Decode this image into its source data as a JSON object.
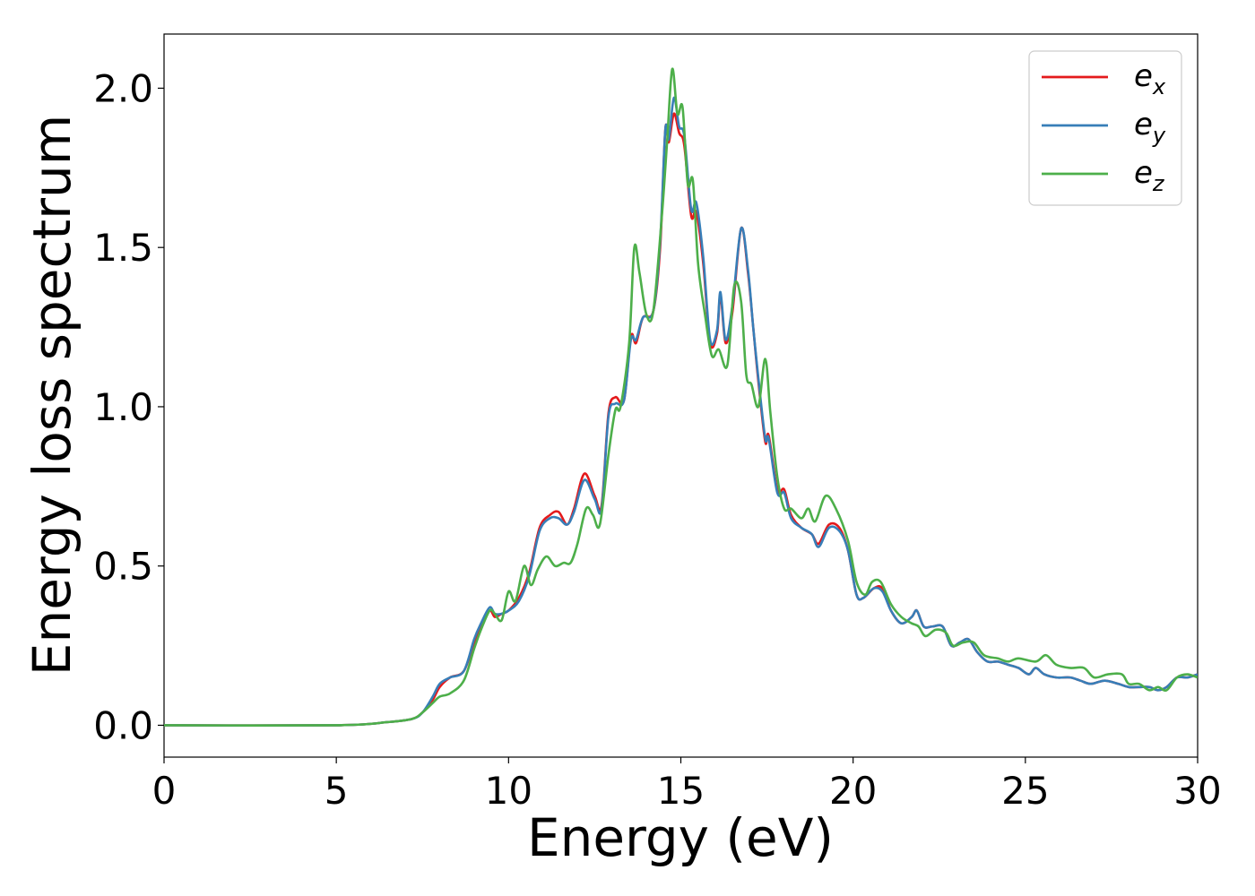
{
  "chart_data": {
    "type": "line",
    "xlabel": "Energy (eV)",
    "ylabel": "Energy loss spectrum",
    "xlim": [
      0,
      30
    ],
    "ylim": [
      -0.1,
      2.17
    ],
    "xticks": [
      "0",
      "5",
      "10",
      "15",
      "20",
      "25",
      "30"
    ],
    "yticks": [
      "0.0",
      "0.5",
      "1.0",
      "1.5",
      "2.0"
    ],
    "grid": false,
    "legend_position": "top-right",
    "series": [
      {
        "name": "e_x",
        "legend_base": "e",
        "legend_sub": "x",
        "color": "#e41a1c",
        "x": [
          0,
          5,
          6.5,
          7.2,
          7.5,
          7.8,
          8.0,
          8.3,
          8.7,
          9.0,
          9.2,
          9.45,
          9.6,
          9.8,
          10.0,
          10.3,
          10.6,
          10.9,
          11.2,
          11.45,
          11.7,
          11.9,
          12.2,
          12.5,
          12.7,
          12.9,
          13.1,
          13.35,
          13.55,
          13.7,
          13.9,
          14.2,
          14.4,
          14.55,
          14.65,
          14.8,
          14.95,
          15.1,
          15.3,
          15.45,
          15.65,
          15.85,
          16.05,
          16.15,
          16.3,
          16.5,
          16.75,
          16.95,
          17.1,
          17.25,
          17.45,
          17.55,
          17.8,
          18.0,
          18.2,
          18.5,
          18.8,
          19.0,
          19.3,
          19.6,
          19.85,
          20.1,
          20.3,
          20.6,
          20.85,
          21.1,
          21.4,
          21.7,
          21.85,
          22.05,
          22.3,
          22.6,
          22.85,
          23.1,
          23.35,
          23.6,
          23.9,
          24.2,
          24.5,
          24.8,
          25.1,
          25.3,
          25.55,
          25.9,
          26.3,
          26.6,
          26.9,
          27.3,
          27.7,
          28.0,
          28.3,
          28.6,
          28.85,
          29.1,
          29.4,
          29.7,
          30.0
        ],
        "y": [
          0.0,
          0.0,
          0.01,
          0.02,
          0.04,
          0.08,
          0.12,
          0.15,
          0.17,
          0.26,
          0.31,
          0.36,
          0.34,
          0.35,
          0.36,
          0.4,
          0.48,
          0.62,
          0.66,
          0.67,
          0.63,
          0.68,
          0.79,
          0.72,
          0.69,
          0.98,
          1.03,
          1.02,
          1.22,
          1.2,
          1.28,
          1.3,
          1.5,
          1.87,
          1.83,
          1.92,
          1.86,
          1.82,
          1.6,
          1.61,
          1.45,
          1.2,
          1.23,
          1.35,
          1.2,
          1.3,
          1.56,
          1.42,
          1.25,
          1.08,
          0.89,
          0.91,
          0.74,
          0.74,
          0.66,
          0.62,
          0.6,
          0.57,
          0.63,
          0.62,
          0.55,
          0.41,
          0.4,
          0.43,
          0.43,
          0.36,
          0.32,
          0.34,
          0.36,
          0.31,
          0.31,
          0.31,
          0.25,
          0.26,
          0.27,
          0.23,
          0.2,
          0.2,
          0.19,
          0.18,
          0.16,
          0.18,
          0.16,
          0.15,
          0.15,
          0.14,
          0.13,
          0.14,
          0.13,
          0.12,
          0.12,
          0.12,
          0.11,
          0.12,
          0.15,
          0.15,
          0.16
        ]
      },
      {
        "name": "e_y",
        "legend_base": "e",
        "legend_sub": "y",
        "color": "#377eb8",
        "x": [
          0,
          5,
          6.5,
          7.2,
          7.5,
          7.8,
          8.0,
          8.3,
          8.7,
          9.0,
          9.2,
          9.45,
          9.6,
          9.8,
          10.0,
          10.3,
          10.6,
          10.9,
          11.2,
          11.45,
          11.7,
          11.9,
          12.2,
          12.5,
          12.7,
          12.9,
          13.1,
          13.35,
          13.55,
          13.7,
          13.9,
          14.2,
          14.4,
          14.55,
          14.65,
          14.8,
          14.95,
          15.1,
          15.3,
          15.45,
          15.65,
          15.85,
          16.05,
          16.15,
          16.3,
          16.5,
          16.75,
          16.95,
          17.1,
          17.25,
          17.45,
          17.55,
          17.8,
          18.0,
          18.2,
          18.5,
          18.8,
          19.0,
          19.3,
          19.6,
          19.85,
          20.1,
          20.3,
          20.6,
          20.85,
          21.1,
          21.4,
          21.7,
          21.85,
          22.05,
          22.3,
          22.6,
          22.85,
          23.1,
          23.35,
          23.6,
          23.9,
          24.2,
          24.5,
          24.8,
          25.1,
          25.3,
          25.55,
          25.9,
          26.3,
          26.6,
          26.9,
          27.3,
          27.7,
          28.0,
          28.3,
          28.6,
          28.85,
          29.1,
          29.4,
          29.7,
          30.0
        ],
        "y": [
          0.0,
          0.0,
          0.01,
          0.02,
          0.04,
          0.09,
          0.13,
          0.15,
          0.17,
          0.27,
          0.32,
          0.37,
          0.35,
          0.35,
          0.36,
          0.39,
          0.47,
          0.61,
          0.65,
          0.65,
          0.63,
          0.67,
          0.77,
          0.71,
          0.68,
          0.97,
          1.01,
          1.02,
          1.21,
          1.21,
          1.28,
          1.3,
          1.52,
          1.87,
          1.84,
          1.97,
          1.88,
          1.85,
          1.62,
          1.64,
          1.47,
          1.21,
          1.24,
          1.36,
          1.21,
          1.32,
          1.56,
          1.43,
          1.25,
          1.09,
          0.9,
          0.9,
          0.73,
          0.73,
          0.65,
          0.62,
          0.6,
          0.56,
          0.62,
          0.61,
          0.55,
          0.41,
          0.4,
          0.43,
          0.42,
          0.36,
          0.32,
          0.34,
          0.36,
          0.31,
          0.31,
          0.31,
          0.25,
          0.26,
          0.27,
          0.23,
          0.2,
          0.2,
          0.19,
          0.18,
          0.16,
          0.18,
          0.16,
          0.15,
          0.15,
          0.14,
          0.13,
          0.14,
          0.13,
          0.12,
          0.12,
          0.12,
          0.11,
          0.12,
          0.15,
          0.15,
          0.16
        ]
      },
      {
        "name": "e_z",
        "legend_base": "e",
        "legend_sub": "z",
        "color": "#4daf4a",
        "x": [
          0,
          5,
          6.5,
          7.2,
          7.5,
          7.8,
          8.0,
          8.3,
          8.7,
          9.0,
          9.2,
          9.45,
          9.6,
          9.8,
          10.0,
          10.2,
          10.45,
          10.65,
          10.85,
          11.1,
          11.35,
          11.6,
          11.8,
          12.0,
          12.25,
          12.45,
          12.65,
          12.9,
          13.1,
          13.25,
          13.5,
          13.65,
          13.8,
          14.0,
          14.2,
          14.45,
          14.6,
          14.75,
          14.9,
          15.05,
          15.2,
          15.35,
          15.5,
          15.7,
          15.9,
          16.1,
          16.35,
          16.55,
          16.75,
          16.9,
          17.05,
          17.25,
          17.45,
          17.6,
          17.8,
          18.0,
          18.2,
          18.5,
          18.7,
          18.9,
          19.2,
          19.5,
          19.85,
          20.1,
          20.35,
          20.55,
          20.8,
          21.1,
          21.4,
          21.7,
          21.9,
          22.1,
          22.4,
          22.7,
          22.9,
          23.2,
          23.5,
          23.8,
          24.2,
          24.5,
          24.8,
          25.3,
          25.6,
          25.9,
          26.3,
          26.7,
          27.0,
          27.4,
          27.8,
          28.0,
          28.3,
          28.6,
          28.85,
          29.1,
          29.4,
          29.7,
          30.0
        ],
        "y": [
          0.0,
          0.0,
          0.01,
          0.02,
          0.04,
          0.07,
          0.09,
          0.1,
          0.14,
          0.24,
          0.3,
          0.36,
          0.35,
          0.33,
          0.42,
          0.39,
          0.5,
          0.44,
          0.49,
          0.53,
          0.5,
          0.51,
          0.51,
          0.57,
          0.68,
          0.66,
          0.63,
          0.85,
          0.99,
          1.0,
          1.2,
          1.5,
          1.42,
          1.29,
          1.3,
          1.6,
          1.83,
          2.06,
          1.92,
          1.94,
          1.7,
          1.71,
          1.45,
          1.29,
          1.16,
          1.18,
          1.13,
          1.38,
          1.33,
          1.1,
          1.07,
          1.0,
          1.15,
          0.98,
          0.78,
          0.68,
          0.68,
          0.65,
          0.68,
          0.64,
          0.72,
          0.68,
          0.58,
          0.45,
          0.41,
          0.45,
          0.45,
          0.38,
          0.34,
          0.32,
          0.31,
          0.28,
          0.3,
          0.29,
          0.25,
          0.26,
          0.26,
          0.22,
          0.21,
          0.2,
          0.21,
          0.2,
          0.22,
          0.19,
          0.18,
          0.18,
          0.15,
          0.16,
          0.16,
          0.13,
          0.13,
          0.11,
          0.12,
          0.11,
          0.15,
          0.16,
          0.15
        ]
      }
    ]
  }
}
